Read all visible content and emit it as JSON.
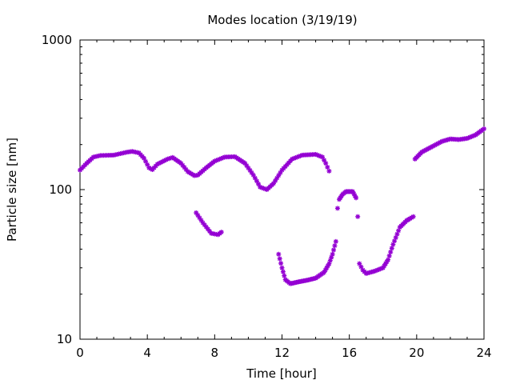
{
  "chart_data": {
    "type": "scatter",
    "title": "Modes location (3/19/19)",
    "xlabel": "Time [hour]",
    "ylabel": "Particle size [nm]",
    "xlim": [
      0,
      24
    ],
    "ylim": [
      10,
      1000
    ],
    "yscale": "log",
    "grid": false,
    "x_ticks": [
      0,
      4,
      8,
      12,
      16,
      20,
      24
    ],
    "x_tick_labels": [
      "0",
      "4",
      "8",
      "12",
      "16",
      "20",
      "24"
    ],
    "y_ticks": [
      10,
      100,
      1000
    ],
    "y_tick_labels": [
      "10",
      "100",
      "1000"
    ],
    "marker_color": "#9400d3",
    "series": [
      {
        "segments": [
          {
            "knots": [
              [
                0.0,
                135
              ],
              [
                0.4,
                150
              ],
              [
                0.8,
                165
              ],
              [
                1.2,
                169
              ],
              [
                2.0,
                170
              ],
              [
                2.8,
                178
              ],
              [
                3.1,
                180
              ],
              [
                3.5,
                176
              ],
              [
                3.8,
                162
              ],
              [
                4.1,
                140
              ],
              [
                4.3,
                136
              ],
              [
                4.6,
                148
              ],
              [
                5.2,
                160
              ],
              [
                5.5,
                164
              ],
              [
                6.0,
                150
              ],
              [
                6.4,
                132
              ],
              [
                6.8,
                124
              ],
              [
                7.0,
                125
              ],
              [
                7.5,
                140
              ],
              [
                8.0,
                155
              ],
              [
                8.6,
                165
              ],
              [
                9.2,
                166
              ],
              [
                9.8,
                150
              ],
              [
                10.3,
                125
              ],
              [
                10.7,
                104
              ],
              [
                11.1,
                100
              ],
              [
                11.5,
                110
              ],
              [
                12.0,
                135
              ],
              [
                12.6,
                160
              ],
              [
                13.2,
                170
              ],
              [
                14.0,
                172
              ],
              [
                14.4,
                165
              ],
              [
                14.6,
                150
              ],
              [
                14.8,
                133
              ]
            ],
            "step": 0.1
          },
          {
            "knots": [
              [
                6.9,
                70
              ],
              [
                7.3,
                60
              ],
              [
                7.8,
                51
              ],
              [
                8.2,
                50
              ],
              [
                8.4,
                52
              ]
            ],
            "step": 0.1
          },
          {
            "knots": [
              [
                11.8,
                37
              ],
              [
                12.0,
                30
              ],
              [
                12.2,
                25
              ],
              [
                12.5,
                23.5
              ],
              [
                13.0,
                24.2
              ],
              [
                13.5,
                24.8
              ],
              [
                14.0,
                25.6
              ],
              [
                14.5,
                28
              ],
              [
                14.8,
                32
              ],
              [
                15.0,
                37
              ],
              [
                15.2,
                45
              ]
            ],
            "step": 0.07
          },
          {
            "knots": [
              [
                15.3,
                75
              ],
              [
                15.4,
                86
              ],
              [
                15.6,
                93
              ],
              [
                15.8,
                97
              ],
              [
                16.2,
                97
              ],
              [
                16.4,
                88
              ]
            ],
            "step": 0.07
          },
          {
            "knots": [
              [
                16.5,
                66
              ]
            ],
            "step": 0.1
          },
          {
            "knots": [
              [
                16.6,
                32
              ],
              [
                16.8,
                29
              ],
              [
                17.0,
                27.5
              ],
              [
                17.5,
                28.5
              ],
              [
                18.0,
                30
              ],
              [
                18.3,
                34
              ],
              [
                18.6,
                43
              ],
              [
                19.0,
                56
              ],
              [
                19.4,
                62
              ],
              [
                19.6,
                64
              ],
              [
                19.8,
                66
              ]
            ],
            "step": 0.08
          },
          {
            "knots": [
              [
                19.9,
                160
              ],
              [
                20.3,
                178
              ],
              [
                21.0,
                196
              ],
              [
                21.5,
                210
              ],
              [
                22.0,
                218
              ],
              [
                22.5,
                216
              ],
              [
                23.0,
                220
              ],
              [
                23.5,
                232
              ],
              [
                24.0,
                255
              ]
            ],
            "step": 0.08
          }
        ]
      }
    ]
  }
}
